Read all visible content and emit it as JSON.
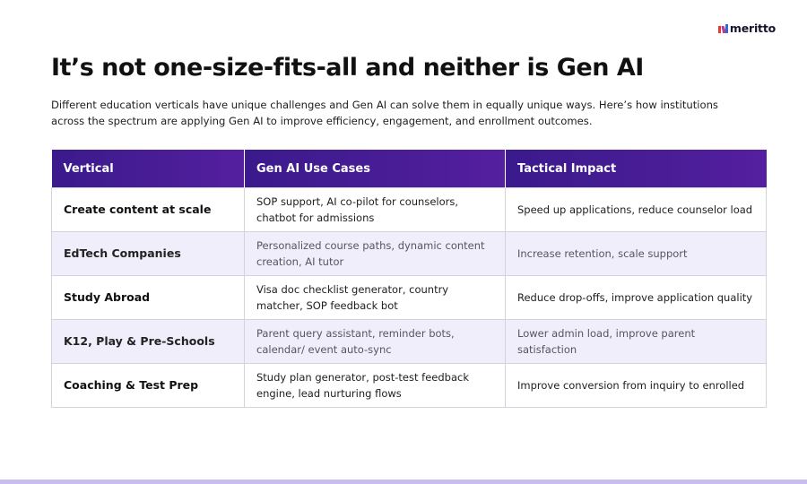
{
  "brand": {
    "name": "meritto",
    "logo_icon": "meritto-m-mark-icon",
    "colors": {
      "mark_red": "#e4393d",
      "mark_blue": "#2d6ae0"
    }
  },
  "page": {
    "title": "It’s not one-size-fits-all and neither is Gen AI",
    "subtitle": "Different education verticals have unique challenges and Gen AI can solve them in equally unique ways. Here’s how institutions across the spectrum are applying Gen AI to improve efficiency, engagement, and enrollment outcomes."
  },
  "table": {
    "headers": [
      "Vertical",
      "Gen AI Use Cases",
      "Tactical Impact"
    ],
    "rows": [
      {
        "vertical": "Create content at scale",
        "use_cases": "SOP support, AI co-pilot for counselors, chatbot for admissions",
        "impact": "Speed up applications, reduce counselor load"
      },
      {
        "vertical": "EdTech Companies",
        "use_cases": "Personalized course paths, dynamic content creation, AI tutor",
        "impact": "Increase retention, scale support"
      },
      {
        "vertical": "Study Abroad",
        "use_cases": "Visa doc checklist generator, country matcher, SOP feedback bot",
        "impact": "Reduce drop-offs, improve application quality"
      },
      {
        "vertical": "K12, Play & Pre-Schools",
        "use_cases": "Parent query assistant, reminder bots, calendar/ event auto-sync",
        "impact": "Lower admin load, improve parent satisfaction"
      },
      {
        "vertical": "Coaching & Test Prep",
        "use_cases": "Study plan generator, post-test feedback engine, lead nurturing flows",
        "impact": "Improve conversion from inquiry to enrolled"
      }
    ],
    "colors": {
      "header_bg": "#4a1d96",
      "alt_row_bg": "#f1eefb"
    }
  },
  "footer": {
    "bar_color": "#c9bdf0"
  }
}
